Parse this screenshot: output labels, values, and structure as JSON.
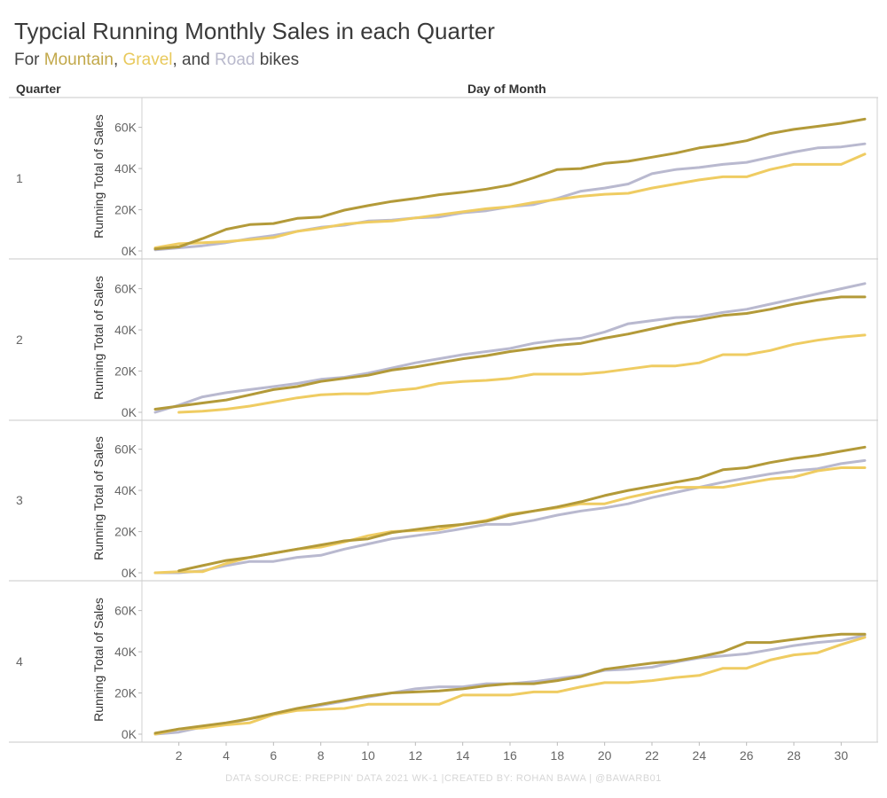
{
  "title": "Typcial Running Monthly Sales in each Quarter",
  "subtitle": {
    "prefix": "For ",
    "mountain": "Mountain",
    "sep1": ", ",
    "gravel": "Gravel",
    "sep2": ", and ",
    "road": "Road",
    "suffix": " bikes"
  },
  "headers": {
    "quarter": "Quarter",
    "day_of_month": "Day of Month"
  },
  "footer": "DATA SOURCE: PREPPIN' DATA 2021 WK-1 |CREATED BY: ROHAN BAWA | @BAWARB01",
  "colors": {
    "mountain": "#b39a39",
    "gravel": "#efcc62",
    "road": "#b9b9cf",
    "grid": "#d9d9d9"
  },
  "chart_data": {
    "type": "line",
    "xlabel": "Day of Month",
    "ylabel": "Running Total of Sales",
    "xlim": [
      1,
      31
    ],
    "ylim": [
      0,
      65000
    ],
    "x_ticks": [
      2,
      4,
      6,
      8,
      10,
      12,
      14,
      16,
      18,
      20,
      22,
      24,
      26,
      28,
      30
    ],
    "y_ticks": [
      0,
      20000,
      40000,
      60000
    ],
    "y_tick_labels": [
      "0K",
      "20K",
      "40K",
      "60K"
    ],
    "x": [
      1,
      2,
      3,
      4,
      5,
      6,
      7,
      8,
      9,
      10,
      11,
      12,
      13,
      14,
      15,
      16,
      17,
      18,
      19,
      20,
      21,
      22,
      23,
      24,
      25,
      26,
      27,
      28,
      29,
      30,
      31
    ],
    "panels": [
      {
        "quarter": "1",
        "series": [
          {
            "name": "Mountain",
            "values": [
              1000,
              2000,
              6000,
              10500,
              12800,
              13300,
              15800,
              16500,
              19800,
              22000,
              24000,
              25500,
              27300,
              28500,
              30000,
              32000,
              35500,
              39500,
              40000,
              42500,
              43500,
              45500,
              47500,
              50000,
              51500,
              53500,
              57000,
              59000,
              60500,
              62000,
              64000
            ]
          },
          {
            "name": "Gravel",
            "values": [
              1500,
              3500,
              4000,
              4500,
              5500,
              6500,
              9500,
              11000,
              13000,
              14000,
              14500,
              16000,
              17500,
              19000,
              20500,
              21500,
              23500,
              25000,
              26500,
              27500,
              28000,
              30500,
              32500,
              34500,
              36000,
              36000,
              39500,
              42000,
              42000,
              42000,
              47000
            ]
          },
          {
            "name": "Road",
            "values": [
              500,
              1500,
              2500,
              4000,
              6000,
              7500,
              9500,
              11500,
              12500,
              14500,
              15000,
              16000,
              16500,
              18500,
              19500,
              21500,
              22500,
              25500,
              29000,
              30500,
              32500,
              37500,
              39500,
              40500,
              42000,
              43000,
              45500,
              48000,
              50000,
              50500,
              52000
            ]
          }
        ]
      },
      {
        "quarter": "2",
        "series": [
          {
            "name": "Mountain",
            "values": [
              1500,
              3000,
              4500,
              6000,
              8500,
              11000,
              12500,
              15000,
              16500,
              18000,
              20500,
              22000,
              24000,
              26000,
              27500,
              29500,
              31000,
              32500,
              33500,
              36000,
              38000,
              40500,
              43000,
              45000,
              47000,
              48000,
              50000,
              52500,
              54500,
              56000,
              56000
            ]
          },
          {
            "name": "Gravel",
            "values": [
              null,
              0,
              500,
              1500,
              3000,
              5000,
              7000,
              8500,
              9000,
              9000,
              10500,
              11500,
              14000,
              15000,
              15500,
              16500,
              18500,
              18500,
              18500,
              19500,
              21000,
              22500,
              22500,
              24000,
              28000,
              28000,
              30000,
              33000,
              35000,
              36500,
              37500
            ]
          },
          {
            "name": "Road",
            "values": [
              0,
              3500,
              7500,
              9500,
              11000,
              12500,
              14000,
              16000,
              17000,
              19000,
              21500,
              24000,
              26000,
              28000,
              29500,
              31000,
              33500,
              35000,
              36000,
              39000,
              43000,
              44500,
              46000,
              46500,
              48500,
              50000,
              52500,
              55000,
              57500,
              60000,
              62500
            ]
          }
        ]
      },
      {
        "quarter": "3",
        "series": [
          {
            "name": "Mountain",
            "values": [
              null,
              1000,
              3500,
              6000,
              7500,
              9500,
              11500,
              13500,
              15500,
              16500,
              19500,
              21000,
              22500,
              23500,
              25000,
              28000,
              30000,
              32000,
              34500,
              37500,
              40000,
              42000,
              44000,
              46000,
              50000,
              51000,
              53500,
              55500,
              57000,
              59000,
              61000
            ]
          },
          {
            "name": "Gravel",
            "values": [
              0,
              500,
              500,
              4500,
              7500,
              9500,
              11500,
              12500,
              15000,
              18000,
              20000,
              20500,
              21000,
              23500,
              25500,
              28500,
              30000,
              31500,
              33500,
              33500,
              36500,
              39000,
              41500,
              41500,
              41500,
              43500,
              45500,
              46500,
              49500,
              51000,
              51000
            ]
          },
          {
            "name": "Road",
            "values": [
              0,
              0,
              1000,
              3500,
              5500,
              5500,
              7500,
              8500,
              11500,
              14000,
              16500,
              18000,
              19500,
              21500,
              23500,
              23500,
              25500,
              28000,
              30000,
              31500,
              33500,
              36500,
              39000,
              41500,
              44000,
              46000,
              48000,
              49500,
              50500,
              53000,
              54500
            ]
          }
        ]
      },
      {
        "quarter": "4",
        "series": [
          {
            "name": "Mountain",
            "values": [
              500,
              2500,
              4000,
              5500,
              7500,
              10000,
              12500,
              14500,
              16500,
              18500,
              20000,
              20500,
              21000,
              22000,
              23500,
              24500,
              24500,
              26000,
              28000,
              31500,
              33000,
              34500,
              35500,
              37500,
              40000,
              44500,
              44500,
              46000,
              47500,
              48500,
              48500
            ]
          },
          {
            "name": "Gravel",
            "values": [
              0,
              2500,
              3000,
              4500,
              5500,
              9500,
              11500,
              12000,
              12500,
              14500,
              14500,
              14500,
              14500,
              19000,
              19000,
              19000,
              20500,
              20500,
              23000,
              25000,
              25000,
              26000,
              27500,
              28500,
              32000,
              32000,
              36000,
              38500,
              39500,
              43500,
              47000
            ]
          },
          {
            "name": "Road",
            "values": [
              0,
              1000,
              3500,
              5000,
              7500,
              9500,
              12000,
              14000,
              16000,
              18000,
              20000,
              22000,
              23000,
              23000,
              24500,
              24500,
              25500,
              27000,
              28500,
              31000,
              31500,
              32500,
              35000,
              37000,
              38000,
              39000,
              41000,
              43000,
              44500,
              45500,
              48000
            ]
          }
        ]
      }
    ]
  }
}
